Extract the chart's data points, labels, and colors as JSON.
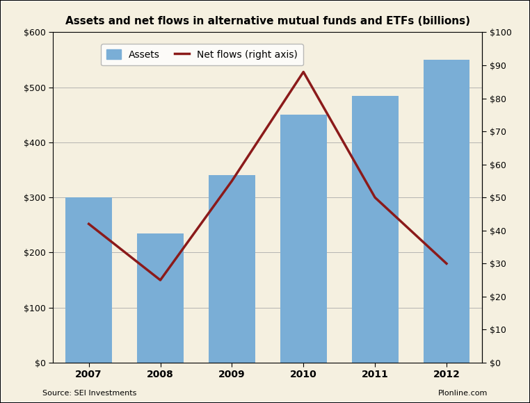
{
  "title": "Assets and net flows in alternative mutual funds and ETFs (billions)",
  "years": [
    2007,
    2008,
    2009,
    2010,
    2011,
    2012
  ],
  "assets": [
    300,
    235,
    340,
    450,
    485,
    550
  ],
  "net_flows": [
    42,
    25,
    55,
    88,
    50,
    30
  ],
  "bar_color": "#7aaed6",
  "line_color": "#8b1a1a",
  "background_color": "#f5f0e0",
  "plot_bg_color": "#f5f0e0",
  "left_ylim": [
    0,
    600
  ],
  "right_ylim": [
    0,
    100
  ],
  "left_yticks": [
    0,
    100,
    200,
    300,
    400,
    500,
    600
  ],
  "right_yticks": [
    0,
    10,
    20,
    30,
    40,
    50,
    60,
    70,
    80,
    90,
    100
  ],
  "source_text": "Source: SEI Investments",
  "watermark_text": "Plonline.com",
  "legend_assets": "Assets",
  "legend_flows": "Net flows (right axis)"
}
